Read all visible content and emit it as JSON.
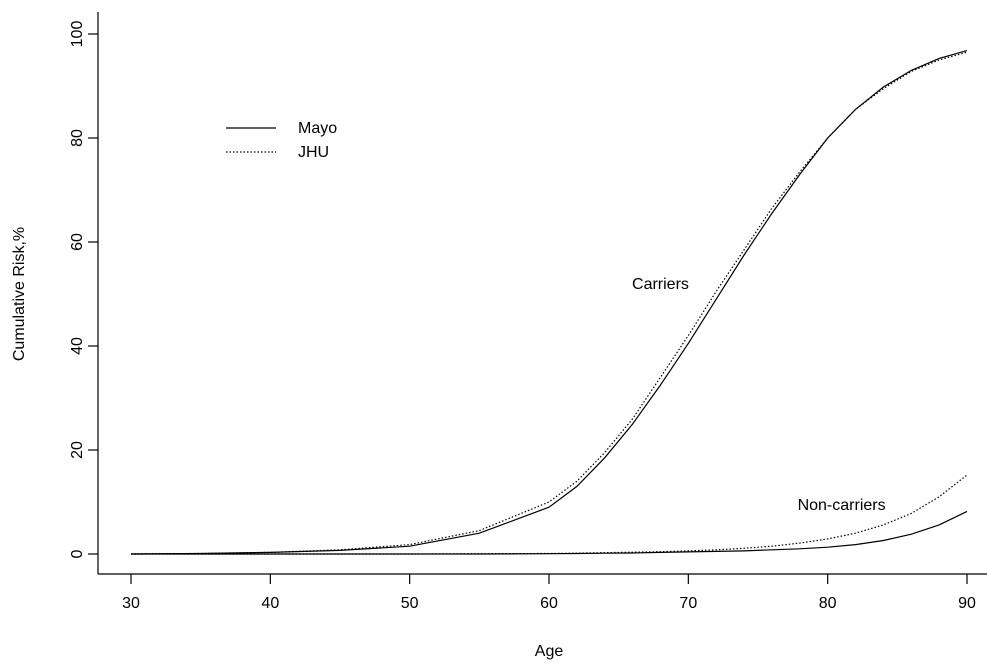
{
  "chart_data": {
    "type": "line",
    "xlabel": "Age",
    "ylabel": "Cumulative Risk,%",
    "xlim": [
      30,
      90
    ],
    "ylim": [
      0,
      100
    ],
    "xticks": [
      30,
      40,
      50,
      60,
      70,
      80,
      90
    ],
    "yticks": [
      0,
      20,
      40,
      60,
      80,
      100
    ],
    "grid": false,
    "legend_placement": "top-left",
    "x": [
      30,
      35,
      40,
      45,
      50,
      55,
      60,
      62,
      64,
      66,
      68,
      70,
      72,
      74,
      76,
      78,
      80,
      82,
      84,
      86,
      88,
      90
    ],
    "series": [
      {
        "name": "Mayo",
        "group": "Carriers",
        "style": "solid",
        "values": [
          0,
          0.1,
          0.3,
          0.7,
          1.5,
          4,
          9,
          13,
          18.5,
          25,
          32.5,
          40.5,
          49,
          57.5,
          65.5,
          73,
          80,
          85.5,
          89.8,
          93,
          95.3,
          96.8
        ]
      },
      {
        "name": "JHU",
        "group": "Carriers",
        "style": "dotted",
        "values": [
          0,
          0.1,
          0.3,
          0.8,
          1.8,
          4.5,
          10,
          14,
          19.5,
          26,
          34,
          42,
          50.5,
          58.5,
          66.5,
          73.5,
          80,
          85.5,
          89.5,
          92.8,
          95,
          96.5
        ]
      },
      {
        "name": "Mayo",
        "group": "Non-carriers",
        "style": "solid",
        "values": [
          0,
          0,
          0,
          0,
          0,
          0,
          0.05,
          0.1,
          0.15,
          0.2,
          0.3,
          0.4,
          0.5,
          0.6,
          0.8,
          1.0,
          1.3,
          1.8,
          2.6,
          3.8,
          5.6,
          8.2
        ]
      },
      {
        "name": "JHU",
        "group": "Non-carriers",
        "style": "dotted",
        "values": [
          0,
          0,
          0,
          0,
          0,
          0.05,
          0.1,
          0.15,
          0.25,
          0.35,
          0.45,
          0.6,
          0.8,
          1.1,
          1.5,
          2.1,
          2.9,
          4.0,
          5.6,
          7.8,
          11,
          15.2
        ]
      }
    ],
    "legend": [
      {
        "label": "Mayo",
        "style": "solid"
      },
      {
        "label": "JHU",
        "style": "dotted"
      }
    ],
    "annotations": [
      {
        "text": "Carriers",
        "x": 68,
        "y": 51
      },
      {
        "text": "Non-carriers",
        "x": 81,
        "y": 8.5
      }
    ]
  }
}
